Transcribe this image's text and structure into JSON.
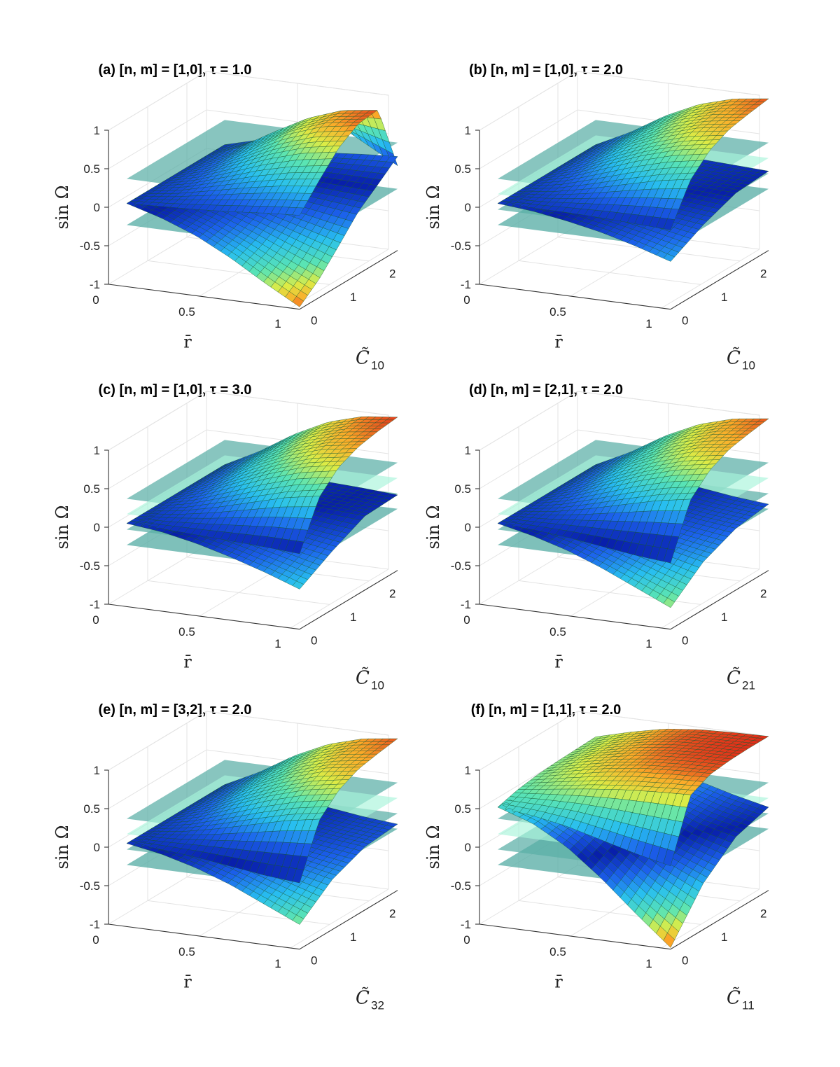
{
  "chart_data": [
    {
      "type": "surface3d",
      "title": "(a) [n, m] = [1,0], τ = 1.0",
      "label": "(a)",
      "nm": "[1,0]",
      "tau": "1.0",
      "xlabel": "r̄",
      "ylabel": "C̃",
      "ylabel_sub": "10",
      "zlabel": "sin Ω",
      "xticks": [
        "0",
        "0.5",
        "1"
      ],
      "yticks": [
        "0",
        "1",
        "2"
      ],
      "zticks": [
        "-1",
        "-0.5",
        "0",
        "0.5",
        "1"
      ],
      "xlim": [
        0,
        1
      ],
      "ylim": [
        0,
        2.5
      ],
      "zlim": [
        -1,
        1
      ],
      "surfaces": [
        {
          "name": "upper branch",
          "values": [
            [
              0.08,
              0.1,
              0.12,
              0.15,
              0.19,
              0.22
            ],
            [
              0.08,
              0.15,
              0.26,
              0.37,
              0.46,
              0.52
            ],
            [
              0.08,
              0.2,
              0.38,
              0.57,
              0.71,
              0.79
            ],
            [
              0.08,
              0.24,
              0.47,
              0.72,
              0.88,
              0.95
            ],
            [
              0.08,
              0.26,
              0.52,
              0.76,
              0.92,
              0.98
            ],
            [
              0.08,
              0.2,
              0.4,
              0.6,
              0.35,
              0.1
            ]
          ]
        },
        {
          "name": "lower branch",
          "values": [
            [
              0.08,
              -0.05,
              -0.22,
              -0.45,
              -0.72,
              -0.97
            ],
            [
              0.08,
              -0.03,
              -0.17,
              -0.35,
              -0.56,
              -0.76
            ],
            [
              0.08,
              0.0,
              -0.1,
              -0.22,
              -0.35,
              -0.48
            ],
            [
              0.08,
              0.03,
              -0.03,
              -0.09,
              -0.14,
              -0.19
            ],
            [
              0.08,
              0.06,
              0.04,
              0.03,
              0.02,
              0.01
            ],
            [
              0.08,
              0.1,
              0.12,
              0.15,
              0.19,
              0.22
            ]
          ]
        }
      ],
      "planes": [
        -0.2,
        0.4
      ],
      "highlight_plane": null
    },
    {
      "type": "surface3d",
      "title": "(b) [n, m] = [1,0], τ = 2.0",
      "label": "(b)",
      "nm": "[1,0]",
      "tau": "2.0",
      "xlabel": "r̄",
      "ylabel": "C̃",
      "ylabel_sub": "10",
      "zlabel": "sin Ω",
      "xticks": [
        "0",
        "0.5",
        "1"
      ],
      "yticks": [
        "0",
        "1",
        "2"
      ],
      "zticks": [
        "-1",
        "-0.5",
        "0",
        "0.5",
        "1"
      ],
      "xlim": [
        0,
        1
      ],
      "ylim": [
        0,
        2.5
      ],
      "zlim": [
        -1,
        1
      ],
      "surfaces": [
        {
          "name": "upper branch",
          "values": [
            [
              0.08,
              0.08,
              0.08,
              0.07,
              0.05,
              0.03
            ],
            [
              0.08,
              0.13,
              0.22,
              0.33,
              0.44,
              0.52
            ],
            [
              0.08,
              0.2,
              0.38,
              0.55,
              0.68,
              0.76
            ],
            [
              0.08,
              0.25,
              0.48,
              0.67,
              0.81,
              0.88
            ],
            [
              0.08,
              0.28,
              0.54,
              0.74,
              0.87,
              0.93
            ],
            [
              0.08,
              0.3,
              0.57,
              0.78,
              0.91,
              0.97
            ]
          ]
        },
        {
          "name": "lower branch",
          "values": [
            [
              0.08,
              0.04,
              -0.03,
              -0.12,
              -0.24,
              -0.38
            ],
            [
              0.08,
              0.06,
              0.02,
              -0.04,
              -0.1,
              -0.16
            ],
            [
              0.08,
              0.08,
              0.07,
              0.05,
              0.02,
              0.0
            ],
            [
              0.08,
              0.08,
              0.08,
              0.07,
              0.05,
              0.03
            ]
          ]
        }
      ],
      "planes": [
        -0.2,
        0.0,
        0.4
      ],
      "highlight_plane": 0.2
    },
    {
      "type": "surface3d",
      "title": "(c) [n, m] = [1,0], τ = 3.0",
      "label": "(c)",
      "nm": "[1,0]",
      "tau": "3.0",
      "xlabel": "r̄",
      "ylabel": "C̃",
      "ylabel_sub": "10",
      "zlabel": "sin Ω",
      "xticks": [
        "0",
        "0.5",
        "1"
      ],
      "yticks": [
        "0",
        "1",
        "2"
      ],
      "zticks": [
        "-1",
        "-0.5",
        "0",
        "0.5",
        "1"
      ],
      "xlim": [
        0,
        1
      ],
      "ylim": [
        0,
        2.5
      ],
      "zlim": [
        -1,
        1
      ],
      "surfaces": [
        {
          "name": "upper branch",
          "values": [
            [
              0.08,
              0.07,
              0.05,
              0.03,
              0.01,
              -0.02
            ],
            [
              0.08,
              0.14,
              0.24,
              0.36,
              0.48,
              0.56
            ],
            [
              0.08,
              0.21,
              0.4,
              0.58,
              0.72,
              0.8
            ],
            [
              0.08,
              0.26,
              0.5,
              0.7,
              0.84,
              0.91
            ],
            [
              0.08,
              0.29,
              0.56,
              0.77,
              0.9,
              0.96
            ],
            [
              0.08,
              0.31,
              0.59,
              0.81,
              0.94,
              0.99
            ]
          ]
        },
        {
          "name": "lower branch",
          "values": [
            [
              0.08,
              0.03,
              -0.06,
              -0.18,
              -0.32,
              -0.48
            ],
            [
              0.08,
              0.05,
              0.0,
              -0.08,
              -0.16,
              -0.24
            ],
            [
              0.08,
              0.07,
              0.05,
              0.02,
              -0.01,
              -0.04
            ],
            [
              0.08,
              0.07,
              0.05,
              0.03,
              0.01,
              -0.02
            ]
          ]
        }
      ],
      "planes": [
        -0.2,
        0.0,
        0.4
      ],
      "highlight_plane": 0.2
    },
    {
      "type": "surface3d",
      "title": "(d) [n, m] = [2,1], τ = 2.0",
      "label": "(d)",
      "nm": "[2,1]",
      "tau": "2.0",
      "xlabel": "r̄",
      "ylabel": "C̃",
      "ylabel_sub": "21",
      "zlabel": "sin Ω",
      "xticks": [
        "0",
        "0.5",
        "1"
      ],
      "yticks": [
        "0",
        "1",
        "2"
      ],
      "zticks": [
        "-1",
        "-0.5",
        "0",
        "0.5",
        "1"
      ],
      "xlim": [
        0,
        1
      ],
      "ylim": [
        0,
        2.5
      ],
      "zlim": [
        -1,
        1
      ],
      "surfaces": [
        {
          "name": "upper branch",
          "values": [
            [
              0.08,
              0.06,
              0.02,
              -0.04,
              -0.1,
              -0.14
            ],
            [
              0.08,
              0.13,
              0.22,
              0.33,
              0.44,
              0.52
            ],
            [
              0.08,
              0.2,
              0.38,
              0.55,
              0.68,
              0.76
            ],
            [
              0.08,
              0.25,
              0.48,
              0.67,
              0.81,
              0.88
            ],
            [
              0.08,
              0.28,
              0.54,
              0.74,
              0.87,
              0.93
            ],
            [
              0.08,
              0.3,
              0.57,
              0.78,
              0.91,
              0.97
            ]
          ]
        },
        {
          "name": "lower branch",
          "values": [
            [
              0.08,
              -0.02,
              -0.15,
              -0.32,
              -0.52,
              -0.72
            ],
            [
              0.08,
              0.01,
              -0.08,
              -0.18,
              -0.28,
              -0.38
            ],
            [
              0.08,
              0.04,
              -0.02,
              -0.09,
              -0.15,
              -0.2
            ],
            [
              0.08,
              0.06,
              0.02,
              -0.04,
              -0.1,
              -0.14
            ]
          ]
        }
      ],
      "planes": [
        -0.2,
        0.0,
        0.4
      ],
      "highlight_plane": 0.2
    },
    {
      "type": "surface3d",
      "title": "(e) [n, m] = [3,2], τ = 2.0",
      "label": "(e)",
      "nm": "[3,2]",
      "tau": "2.0",
      "xlabel": "r̄",
      "ylabel": "C̃",
      "ylabel_sub": "32",
      "zlabel": "sin Ω",
      "xticks": [
        "0",
        "0.5",
        "1"
      ],
      "yticks": [
        "0",
        "1",
        "2"
      ],
      "zticks": [
        "-1",
        "-0.5",
        "0",
        "0.5",
        "1"
      ],
      "xlim": [
        0,
        1
      ],
      "ylim": [
        0,
        2.5
      ],
      "zlim": [
        -1,
        1
      ],
      "surfaces": [
        {
          "name": "upper branch",
          "values": [
            [
              0.08,
              0.06,
              0.02,
              -0.04,
              -0.1,
              -0.14
            ],
            [
              0.08,
              0.13,
              0.22,
              0.33,
              0.44,
              0.52
            ],
            [
              0.08,
              0.2,
              0.38,
              0.55,
              0.68,
              0.76
            ],
            [
              0.08,
              0.25,
              0.48,
              0.67,
              0.81,
              0.88
            ],
            [
              0.08,
              0.28,
              0.54,
              0.74,
              0.87,
              0.93
            ],
            [
              0.08,
              0.3,
              0.57,
              0.78,
              0.91,
              0.97
            ]
          ]
        },
        {
          "name": "lower branch",
          "values": [
            [
              0.08,
              0.0,
              -0.12,
              -0.28,
              -0.48,
              -0.68
            ],
            [
              0.08,
              0.02,
              -0.06,
              -0.15,
              -0.25,
              -0.35
            ],
            [
              0.08,
              0.04,
              -0.01,
              -0.07,
              -0.13,
              -0.18
            ],
            [
              0.08,
              0.06,
              0.02,
              -0.04,
              -0.1,
              -0.14
            ]
          ]
        }
      ],
      "planes": [
        -0.2,
        0.0,
        0.4
      ],
      "highlight_plane": 0.2
    },
    {
      "type": "surface3d",
      "title": "(f) [n, m] = [1,1], τ = 2.0",
      "label": "(f)",
      "nm": "[1,1]",
      "tau": "2.0",
      "xlabel": "r̄",
      "ylabel": "C̃",
      "ylabel_sub": "11",
      "zlabel": "sin Ω",
      "xticks": [
        "0",
        "0.5",
        "1"
      ],
      "yticks": [
        "0",
        "1",
        "2"
      ],
      "zticks": [
        "-1",
        "-0.5",
        "0",
        "0.5",
        "1"
      ],
      "xlim": [
        0,
        1
      ],
      "ylim": [
        0,
        2.5
      ],
      "zlim": [
        -1,
        1
      ],
      "surfaces": [
        {
          "name": "upper branch",
          "values": [
            [
              0.55,
              0.5,
              0.42,
              0.3,
              0.18,
              0.08
            ],
            [
              0.62,
              0.68,
              0.74,
              0.79,
              0.82,
              0.84
            ],
            [
              0.66,
              0.76,
              0.85,
              0.91,
              0.94,
              0.96
            ],
            [
              0.68,
              0.8,
              0.89,
              0.95,
              0.98,
              0.99
            ],
            [
              0.69,
              0.81,
              0.91,
              0.97,
              0.99,
              1.0
            ],
            [
              0.7,
              0.82,
              0.92,
              0.97,
              0.99,
              1.0
            ]
          ]
        },
        {
          "name": "lower branch",
          "values": [
            [
              0.55,
              0.4,
              0.15,
              -0.2,
              -0.6,
              -0.98
            ],
            [
              0.55,
              0.45,
              0.3,
              0.05,
              -0.2,
              -0.4
            ],
            [
              0.55,
              0.48,
              0.38,
              0.22,
              0.05,
              -0.05
            ],
            [
              0.55,
              0.5,
              0.42,
              0.3,
              0.18,
              0.08
            ]
          ]
        }
      ],
      "planes": [
        -0.2,
        0.0,
        0.4
      ],
      "highlight_plane": 0.2
    }
  ],
  "colors": {
    "plane": "#5aaea6",
    "highlight_plane": "#a8f5da",
    "mesh": "#17572e",
    "grid": "#e3e3e3",
    "axis": "#333333"
  }
}
